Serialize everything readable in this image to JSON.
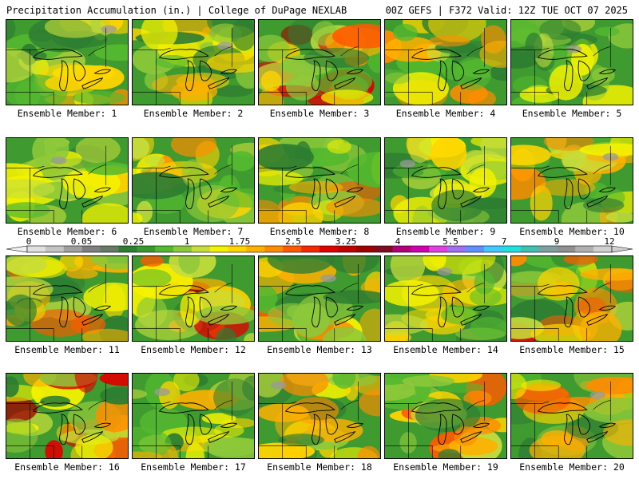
{
  "header": {
    "title_left": "Precipitation Accumulation (in.) | College of DuPage NEXLAB",
    "title_right": "00Z GEFS | F372 Valid: 12Z TUE OCT 07 2025"
  },
  "colorbar": {
    "labels": [
      "0",
      "0.05",
      "0.25",
      "1",
      "1.75",
      "2.5",
      "3.25",
      "4",
      "5.5",
      "7",
      "9",
      "12"
    ],
    "colors": [
      "#e0e0e0",
      "#c4c4c4",
      "#a0a0a0",
      "#7f7f7f",
      "#667a66",
      "#2e7d32",
      "#389a2c",
      "#55b92f",
      "#8cc83a",
      "#c6dd3c",
      "#f4f200",
      "#ffd400",
      "#ffb000",
      "#ff8c00",
      "#ff5a00",
      "#f52800",
      "#e00000",
      "#c00000",
      "#a00000",
      "#800a20",
      "#b0007a",
      "#d000b0",
      "#e040e0",
      "#a070f0",
      "#6090ff",
      "#40c8ff",
      "#20e0e0",
      "#40c0b0",
      "#80a0a0",
      "#909090",
      "#b0b0b0",
      "#d0d0d0"
    ]
  },
  "panels": [
    {
      "label": "Ensemble Member: 1",
      "intensity": 0.45
    },
    {
      "label": "Ensemble Member: 2",
      "intensity": 0.35
    },
    {
      "label": "Ensemble Member: 3",
      "intensity": 0.75
    },
    {
      "label": "Ensemble Member: 4",
      "intensity": 0.45
    },
    {
      "label": "Ensemble Member: 5",
      "intensity": 0.15
    },
    {
      "label": "Ensemble Member: 6",
      "intensity": 0.2
    },
    {
      "label": "Ensemble Member: 7",
      "intensity": 0.4
    },
    {
      "label": "Ensemble Member: 8",
      "intensity": 0.55
    },
    {
      "label": "Ensemble Member: 9",
      "intensity": 0.3
    },
    {
      "label": "Ensemble Member: 10",
      "intensity": 0.4
    },
    {
      "label": "Ensemble Member: 11",
      "intensity": 0.55
    },
    {
      "label": "Ensemble Member: 12",
      "intensity": 0.9
    },
    {
      "label": "Ensemble Member: 13",
      "intensity": 0.5
    },
    {
      "label": "Ensemble Member: 14",
      "intensity": 0.25
    },
    {
      "label": "Ensemble Member: 15",
      "intensity": 0.6
    },
    {
      "label": "Ensemble Member: 16",
      "intensity": 0.8
    },
    {
      "label": "Ensemble Member: 17",
      "intensity": 0.35
    },
    {
      "label": "Ensemble Member: 18",
      "intensity": 0.45
    },
    {
      "label": "Ensemble Member: 19",
      "intensity": 0.6
    },
    {
      "label": "Ensemble Member: 20",
      "intensity": 0.65
    }
  ]
}
